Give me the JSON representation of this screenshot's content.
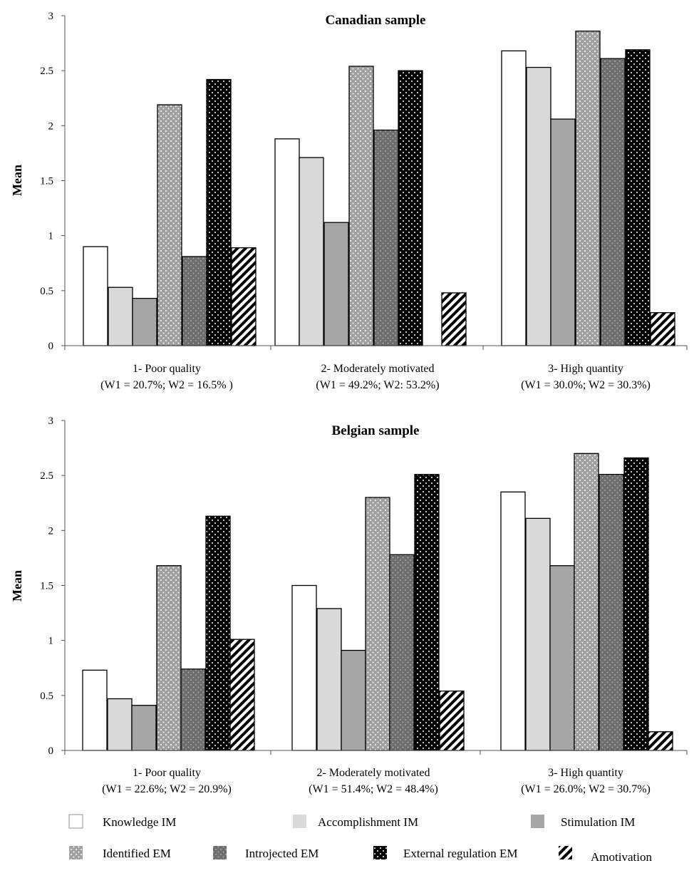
{
  "legend": [
    {
      "key": "knowledge",
      "label": "Knowledge IM",
      "pattern": "white"
    },
    {
      "key": "accomplishment",
      "label": "Accomplishment IM",
      "pattern": "lightgray"
    },
    {
      "key": "stimulation",
      "label": "Stimulation IM",
      "pattern": "gray"
    },
    {
      "key": "identified",
      "label": "Identified EM",
      "pattern": "dots-gray"
    },
    {
      "key": "introjected",
      "label": "Introjected EM",
      "pattern": "dots-darkgray"
    },
    {
      "key": "external",
      "label": "External regulation EM",
      "pattern": "dots-black"
    },
    {
      "key": "amotivation",
      "label": "Amotivation",
      "pattern": "diagonal"
    }
  ],
  "colors": {
    "white": "#ffffff",
    "lightgray": "#d9d9d9",
    "gray": "#a6a6a6",
    "dots-gray": "#a0a0a0",
    "dots-darkgray": "#6e6e6e",
    "dots-black": "#000000"
  },
  "chart_data": [
    {
      "type": "bar",
      "title": "Canadian sample",
      "ylabel": "Mean",
      "xlabel": "",
      "ylim": [
        0,
        3
      ],
      "yticks": [
        "0",
        "0.5",
        "1",
        "1.5",
        "2",
        "2.5",
        "3"
      ],
      "categories": [
        {
          "line1": "1- Poor quality",
          "line2": "(W1 = 20.7%; W2 = 16.5% )"
        },
        {
          "line1": "2- Moderately motivated",
          "line2": "(W1 = 49.2%; W2: 53.2%)"
        },
        {
          "line1": "3- High quantity",
          "line2": "(W1 = 30.0%; W2 = 30.3%)"
        }
      ],
      "series": [
        {
          "name": "Knowledge IM",
          "values": [
            0.9,
            1.88,
            2.68
          ]
        },
        {
          "name": "Accomplishment IM",
          "values": [
            0.53,
            1.71,
            2.53
          ]
        },
        {
          "name": "Stimulation IM",
          "values": [
            0.43,
            1.12,
            2.06
          ]
        },
        {
          "name": "Identified EM",
          "values": [
            2.19,
            2.54,
            2.86
          ]
        },
        {
          "name": "Introjected EM",
          "values": [
            0.81,
            1.96,
            2.61
          ]
        },
        {
          "name": "External regulation EM",
          "values": [
            2.42,
            2.5,
            2.69
          ]
        },
        {
          "name": "Amotivation",
          "values": [
            0.89,
            0.48,
            0.3
          ]
        }
      ],
      "grid": false,
      "legend_position": "bottom"
    },
    {
      "type": "bar",
      "title": "Belgian sample",
      "ylabel": "Mean",
      "xlabel": "",
      "ylim": [
        0,
        3
      ],
      "yticks": [
        "0",
        "0.5",
        "1",
        "1.5",
        "2",
        "2.5",
        "3"
      ],
      "categories": [
        {
          "line1": "1- Poor quality",
          "line2": "(W1 = 22.6%; W2 = 20.9%)"
        },
        {
          "line1": "2- Moderately motivated",
          "line2": "(W1 = 51.4%; W2 = 48.4%)"
        },
        {
          "line1": "3- High quantity",
          "line2": "(W1 = 26.0%; W2 = 30.7%)"
        }
      ],
      "series": [
        {
          "name": "Knowledge IM",
          "values": [
            0.73,
            1.5,
            2.35
          ]
        },
        {
          "name": "Accomplishment IM",
          "values": [
            0.47,
            1.29,
            2.11
          ]
        },
        {
          "name": "Stimulation IM",
          "values": [
            0.41,
            0.91,
            1.68
          ]
        },
        {
          "name": "Identified EM",
          "values": [
            1.68,
            2.3,
            2.7
          ]
        },
        {
          "name": "Introjected EM",
          "values": [
            0.74,
            1.78,
            2.51
          ]
        },
        {
          "name": "External regulation EM",
          "values": [
            2.13,
            2.51,
            2.66
          ]
        },
        {
          "name": "Amotivation",
          "values": [
            1.01,
            0.54,
            0.17
          ]
        }
      ],
      "grid": false,
      "legend_position": "bottom"
    }
  ]
}
